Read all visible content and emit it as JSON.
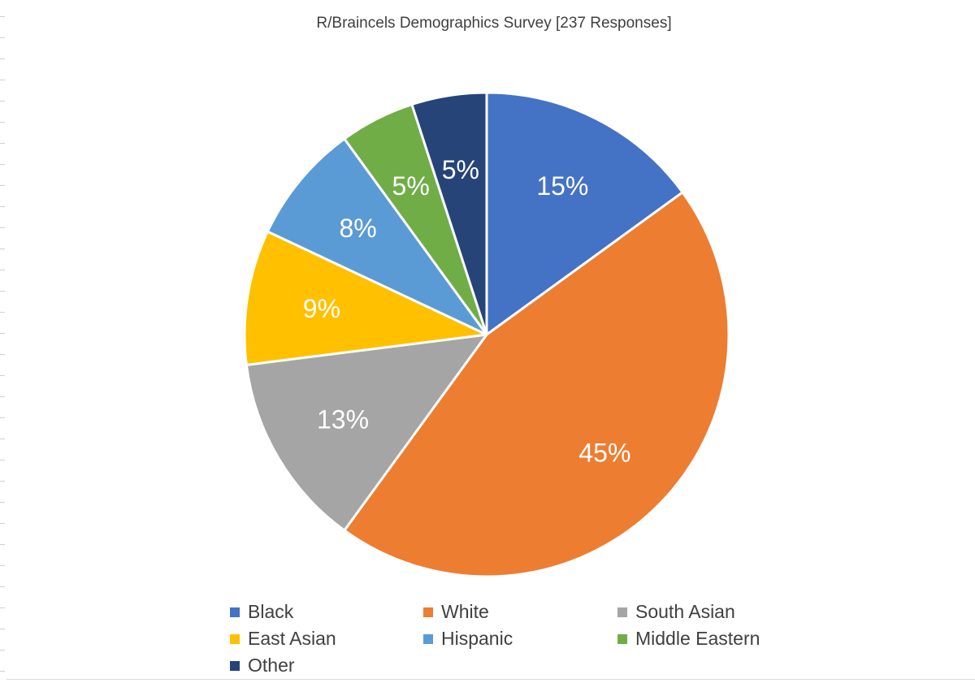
{
  "chart_data": {
    "type": "pie",
    "title": "R/Braincels Demographics Survey [237 Responses]",
    "slices": [
      {
        "name": "Black",
        "value": 15,
        "label": "15%",
        "color": "#4472c4"
      },
      {
        "name": "White",
        "value": 45,
        "label": "45%",
        "color": "#ed7d31"
      },
      {
        "name": "South Asian",
        "value": 13,
        "label": "13%",
        "color": "#a5a5a5"
      },
      {
        "name": "East Asian",
        "value": 9,
        "label": "9%",
        "color": "#ffc000"
      },
      {
        "name": "Hispanic",
        "value": 8,
        "label": "8%",
        "color": "#5b9bd5"
      },
      {
        "name": "Middle Eastern",
        "value": 5,
        "label": "5%",
        "color": "#70ad47"
      },
      {
        "name": "Other",
        "value": 5,
        "label": "5%",
        "color": "#264478"
      }
    ],
    "start_angle_deg": 0,
    "direction": "clockwise",
    "legend_placement": "bottom"
  }
}
